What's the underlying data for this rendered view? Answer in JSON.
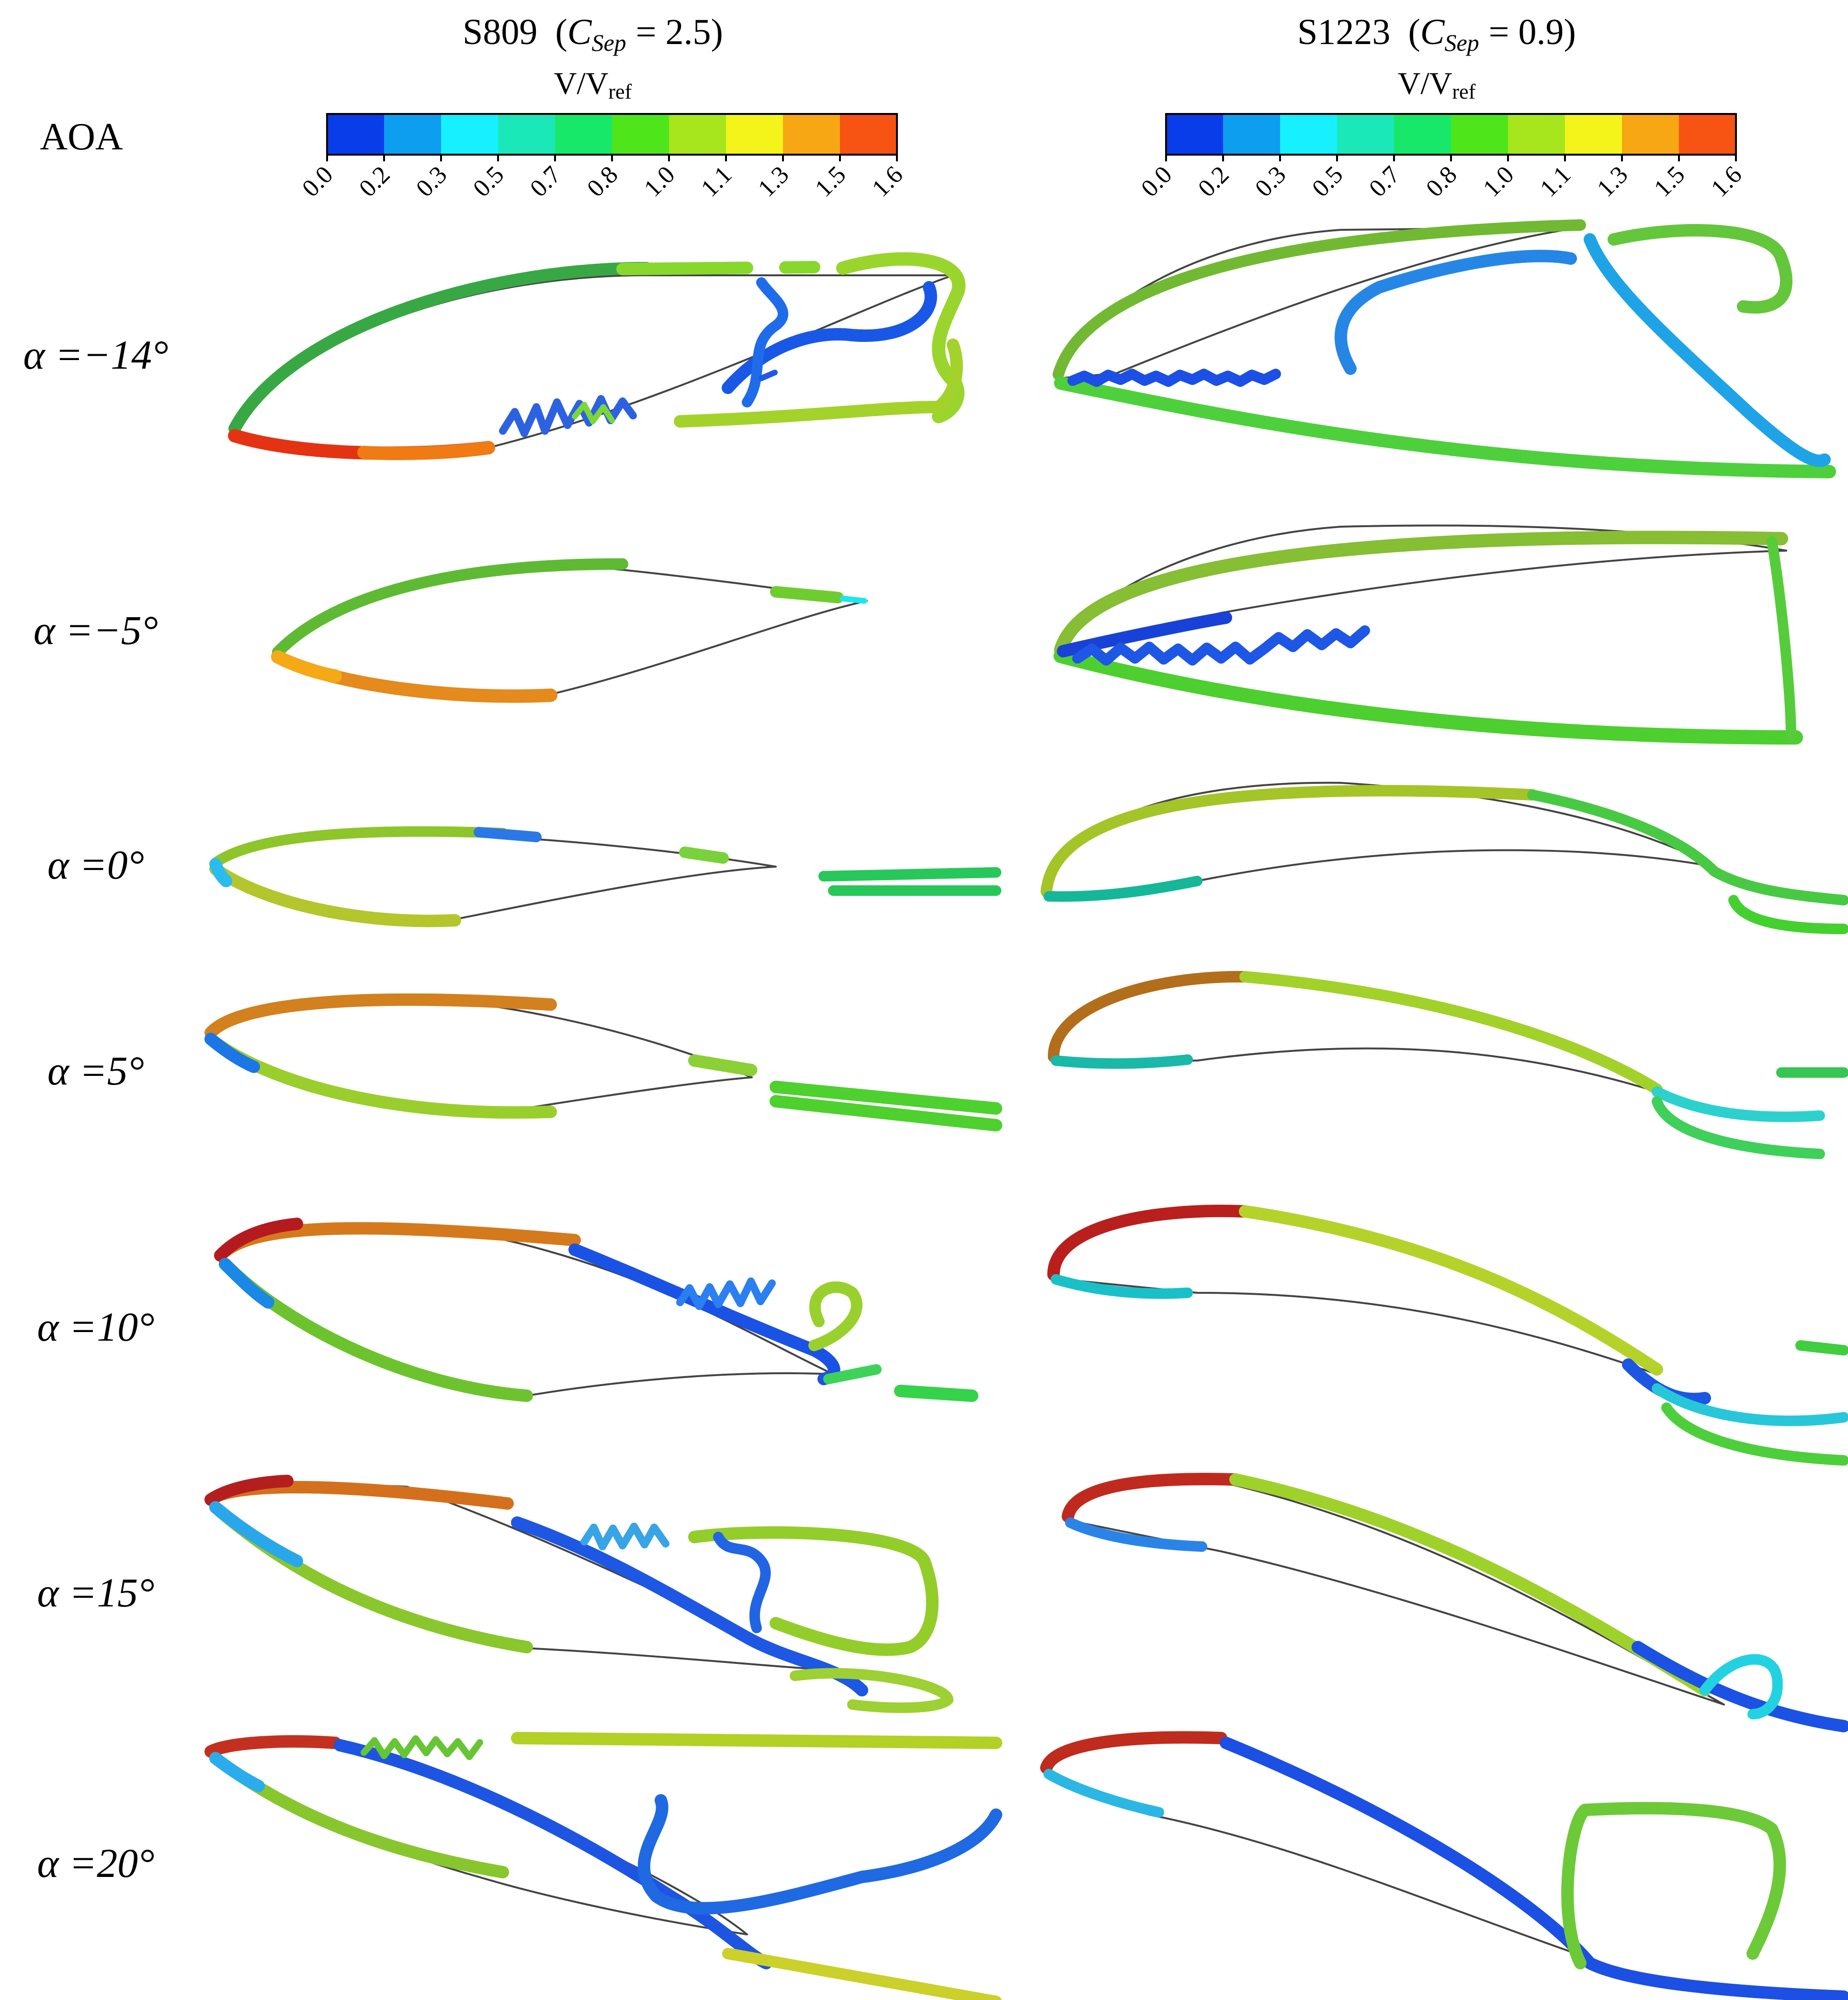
{
  "header": {
    "aoa_label": "AOA",
    "left": {
      "airfoil": "S809",
      "csep_prefix": "(",
      "csep_symbol": "C",
      "csep_sub": "Sep",
      "csep_value": "= 2.5)",
      "colorbar_title_main": "V/V",
      "colorbar_title_sub": "ref"
    },
    "right": {
      "airfoil": "S1223",
      "csep_prefix": "(",
      "csep_symbol": "C",
      "csep_sub": "Sep",
      "csep_value": "= 0.9)",
      "colorbar_title_main": "V/V",
      "colorbar_title_sub": "ref"
    }
  },
  "colorbar": {
    "ticks": [
      "0.0",
      "0.2",
      "0.3",
      "0.5",
      "0.7",
      "0.8",
      "1.0",
      "1.1",
      "1.3",
      "1.5",
      "1.6"
    ],
    "colors": [
      "#0a3dea",
      "#0d9ef0",
      "#16f0ff",
      "#1be8b8",
      "#18e86a",
      "#4ee51b",
      "#a7e51d",
      "#f4f41a",
      "#f7a713",
      "#f75313"
    ]
  },
  "rows": [
    {
      "alpha": "α =−14°"
    },
    {
      "alpha": "α =−5°"
    },
    {
      "alpha": "α =0°"
    },
    {
      "alpha": "α =5°"
    },
    {
      "alpha": "α =10°"
    },
    {
      "alpha": "α =15°"
    },
    {
      "alpha": "α =20°"
    }
  ]
}
